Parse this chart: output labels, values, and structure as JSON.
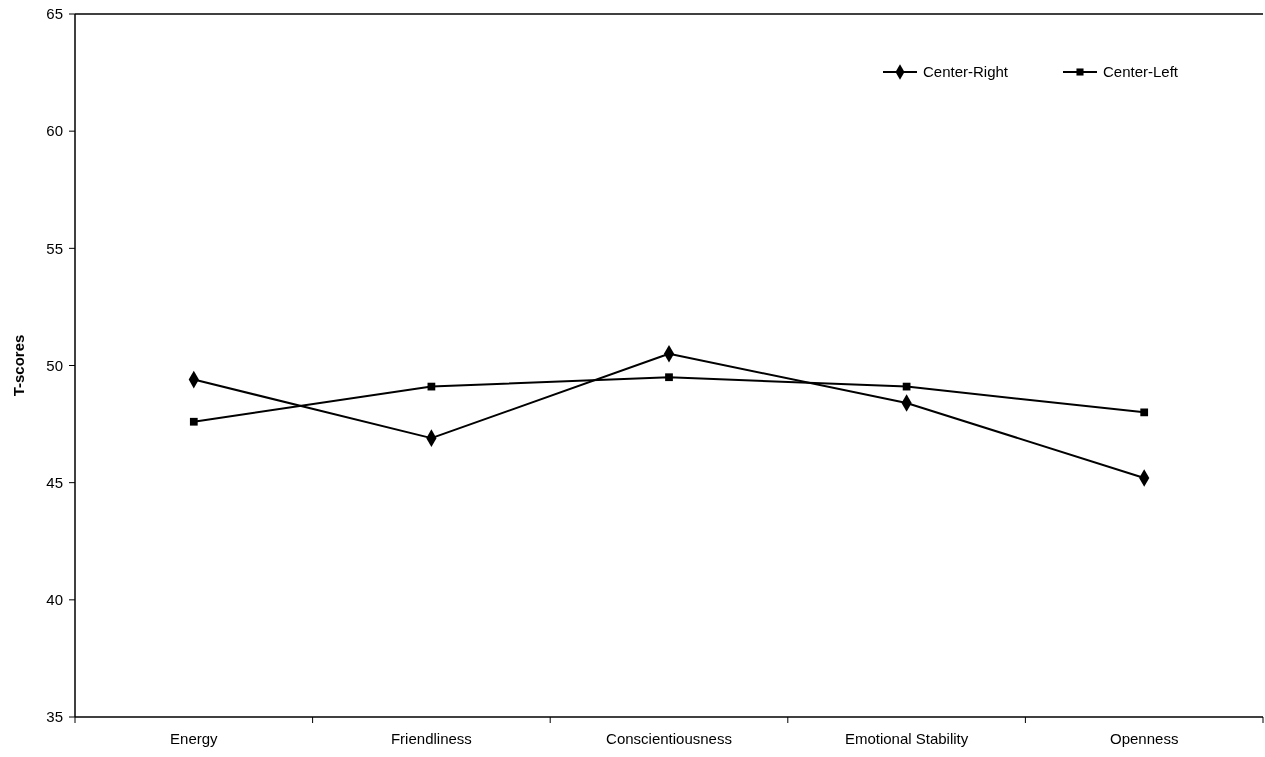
{
  "chart_data": {
    "type": "line",
    "ylabel": "T-scores",
    "categories": [
      "Energy",
      "Friendliness",
      "Conscientiousness",
      "Emotional Stability",
      "Openness"
    ],
    "series": [
      {
        "name": "Center-Right",
        "color": "#000000",
        "marker": "diamond",
        "values": [
          49.4,
          46.9,
          50.5,
          48.4,
          45.2
        ]
      },
      {
        "name": "Center-Left",
        "color": "#000000",
        "marker": "square",
        "values": [
          47.6,
          49.1,
          49.5,
          49.1,
          48.0
        ]
      }
    ],
    "ylim": [
      35,
      65
    ],
    "yticks": [
      35,
      40,
      45,
      50,
      55,
      60,
      65
    ],
    "grid": false,
    "legend": "top right"
  }
}
